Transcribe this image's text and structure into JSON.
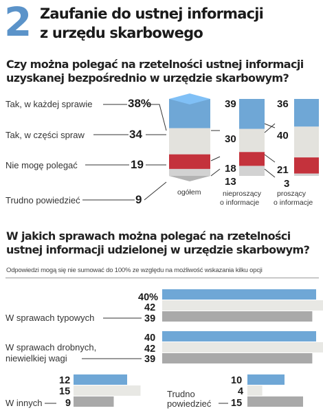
{
  "header": {
    "number": "2",
    "title_line1": "Zaufanie do ustnej informacji",
    "title_line2": "z urzędu skarbowego"
  },
  "section1": {
    "question_line1": "Czy można polegać na rzetelności ustnej informacji",
    "question_line2": "uzyskanej bezpośrednio w urzędzie skarbowym?"
  },
  "section2": {
    "question_line1": "W jakich sprawach można polegać na rzetelności",
    "question_line2": "ustnej informacji udzielonej w urzędzie skarbowym?",
    "note": "Odpowiedzi mogą się nie sumować do 100% ze względu na możliwość wskazania kilku opcji"
  },
  "chart_data": [
    {
      "type": "bar",
      "stacked": true,
      "categories": [
        "ogółem",
        "nieproszący o informacje",
        "proszący o informacje"
      ],
      "series": [
        {
          "name": "Tak, w każdej sprawie",
          "values": [
            38,
            39,
            36
          ],
          "color": "#6fa7d6"
        },
        {
          "name": "Tak, w części spraw",
          "values": [
            34,
            30,
            40
          ],
          "color": "#e3e2dd"
        },
        {
          "name": "Nie mogę polegać",
          "values": [
            19,
            18,
            21
          ],
          "color": "#c4323c"
        },
        {
          "name": "Trudno powiedzieć",
          "values": [
            9,
            13,
            3
          ],
          "color": "#d2d2d2"
        }
      ],
      "value_labels_main": [
        "38%",
        "34",
        "19",
        "9"
      ],
      "value_labels_col2": [
        "39",
        "30",
        "18",
        "13"
      ],
      "value_labels_col3": [
        "36",
        "40",
        "21",
        "3"
      ],
      "category_labels": {
        "col1": "ogółem",
        "col2_line1": "nieproszący",
        "col2_line2": "o informacje",
        "col3_line1": "proszący",
        "col3_line2": "o informacje"
      },
      "ylim": [
        0,
        100
      ]
    },
    {
      "type": "bar",
      "orientation": "horizontal",
      "categories": [
        "W sprawach typowych",
        "W sprawach drobnych, niewielkiej wagi",
        "W innych",
        "Trudno powiedzieć"
      ],
      "series_colors": [
        "#6fa7d6",
        "#e8e8e4",
        "#a9a9a9"
      ],
      "groups": [
        {
          "label_line1": "W sprawach typowych",
          "label_line2": "",
          "values": [
            40,
            42,
            39
          ],
          "value_labels": [
            "40%",
            "42",
            "39"
          ]
        },
        {
          "label_line1": "W sprawach drobnych,",
          "label_line2": "niewielkiej wagi",
          "values": [
            40,
            42,
            39
          ],
          "value_labels": [
            "40",
            "42",
            "39"
          ]
        },
        {
          "label_line1": "W innych",
          "label_line2": "",
          "values": [
            12,
            15,
            9
          ],
          "value_labels": [
            "12",
            "15",
            "9"
          ]
        },
        {
          "label_line1": "Trudno",
          "label_line2": "powiedzieć",
          "values": [
            10,
            4,
            15
          ],
          "value_labels": [
            "10",
            "4",
            "15"
          ]
        }
      ]
    }
  ]
}
